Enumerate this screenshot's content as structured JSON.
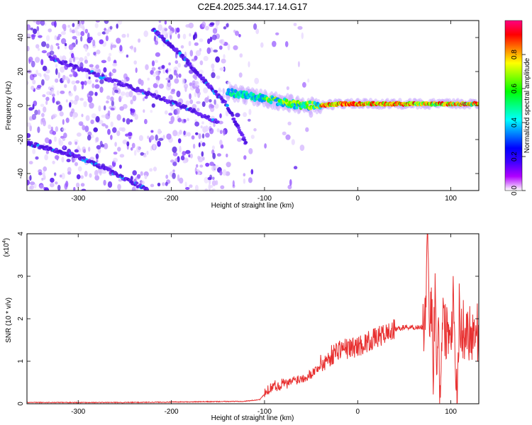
{
  "title": "C2E4.2025.344.17.14.G17",
  "chart_data": [
    {
      "type": "heatmap",
      "title": "C2E4.2025.344.17.14.G17",
      "xlabel": "Height of straight line (km)",
      "ylabel": "Frequency (Hz)",
      "xlim": [
        -355,
        130
      ],
      "ylim": [
        -50,
        50
      ],
      "x_ticks": [
        -300,
        -200,
        -100,
        0,
        100
      ],
      "y_ticks": [
        -40,
        -20,
        0,
        20,
        40
      ],
      "colorbar": {
        "label": "Normalized spectral amplitude",
        "range": [
          0,
          1
        ],
        "ticks": [
          "0.0",
          "0.2",
          "0.4",
          "0.6",
          "0.8"
        ],
        "colors": [
          "#ffffff",
          "#b000ff",
          "#4000ff",
          "#0000ff",
          "#0080ff",
          "#00ffff",
          "#00ff80",
          "#00ff00",
          "#80ff00",
          "#ffff00",
          "#ff8000",
          "#ff0000",
          "#ff0080"
        ]
      },
      "features": {
        "carrier": [
          [
            -140,
            8
          ],
          [
            -120,
            6
          ],
          [
            -100,
            4
          ],
          [
            -80,
            2
          ],
          [
            -60,
            0
          ],
          [
            -40,
            0
          ],
          [
            -20,
            1
          ],
          [
            0,
            1
          ],
          [
            50,
            1
          ],
          [
            100,
            1
          ],
          [
            130,
            1
          ]
        ],
        "streaks": [
          [
            [
              -220,
              45
            ],
            [
              -190,
              30
            ],
            [
              -165,
              15
            ],
            [
              -140,
              0
            ],
            [
              -120,
              -22
            ]
          ],
          [
            [
              -355,
              -22
            ],
            [
              -300,
              -30
            ],
            [
              -260,
              -40
            ],
            [
              -225,
              -50
            ]
          ],
          [
            [
              -330,
              28
            ],
            [
              -280,
              18
            ],
            [
              -230,
              8
            ],
            [
              -180,
              -2
            ],
            [
              -150,
              -10
            ]
          ]
        ]
      }
    },
    {
      "type": "line",
      "xlabel": "Height of straight line (km)",
      "ylabel": "SNR (10 * v/v)",
      "y_multiplier": "(x10",
      "y_multiplier_exp": "4",
      "xlim": [
        -355,
        130
      ],
      "ylim": [
        0,
        4
      ],
      "x_ticks": [
        -300,
        -200,
        -100,
        0,
        100
      ],
      "y_ticks": [
        0,
        1,
        2,
        3,
        4
      ],
      "series": [
        {
          "color": "#e83030",
          "points": [
            [
              -355,
              0.03
            ],
            [
              -300,
              0.03
            ],
            [
              -250,
              0.03
            ],
            [
              -200,
              0.04
            ],
            [
              -150,
              0.05
            ],
            [
              -120,
              0.06
            ],
            [
              -105,
              0.1
            ],
            [
              -95,
              0.35
            ],
            [
              -90,
              0.45
            ],
            [
              -85,
              0.4
            ],
            [
              -80,
              0.5
            ],
            [
              -75,
              0.45
            ],
            [
              -70,
              0.55
            ],
            [
              -60,
              0.6
            ],
            [
              -50,
              0.7
            ],
            [
              -40,
              0.9
            ],
            [
              -30,
              1.1
            ],
            [
              -20,
              1.3
            ],
            [
              -10,
              1.3
            ],
            [
              0,
              1.35
            ],
            [
              10,
              1.45
            ],
            [
              20,
              1.55
            ],
            [
              30,
              1.65
            ],
            [
              40,
              1.75
            ],
            [
              50,
              1.8
            ],
            [
              60,
              1.8
            ],
            [
              70,
              1.8
            ],
            [
              73,
              2.2
            ],
            [
              75,
              3.9
            ],
            [
              77,
              1.2
            ],
            [
              79,
              2.8
            ],
            [
              81,
              0.6
            ],
            [
              83,
              3.0
            ],
            [
              85,
              1.0
            ],
            [
              87,
              1.8
            ],
            [
              88,
              0.1
            ],
            [
              90,
              1.6
            ],
            [
              92,
              2.1
            ],
            [
              94,
              1.7
            ],
            [
              96,
              1.8
            ],
            [
              100,
              1.75
            ],
            [
              103,
              2.6
            ],
            [
              105,
              1.1
            ],
            [
              107,
              0.1
            ],
            [
              109,
              2.2
            ],
            [
              111,
              1.7
            ],
            [
              115,
              1.75
            ],
            [
              120,
              1.72
            ],
            [
              130,
              1.7
            ]
          ]
        }
      ]
    }
  ]
}
